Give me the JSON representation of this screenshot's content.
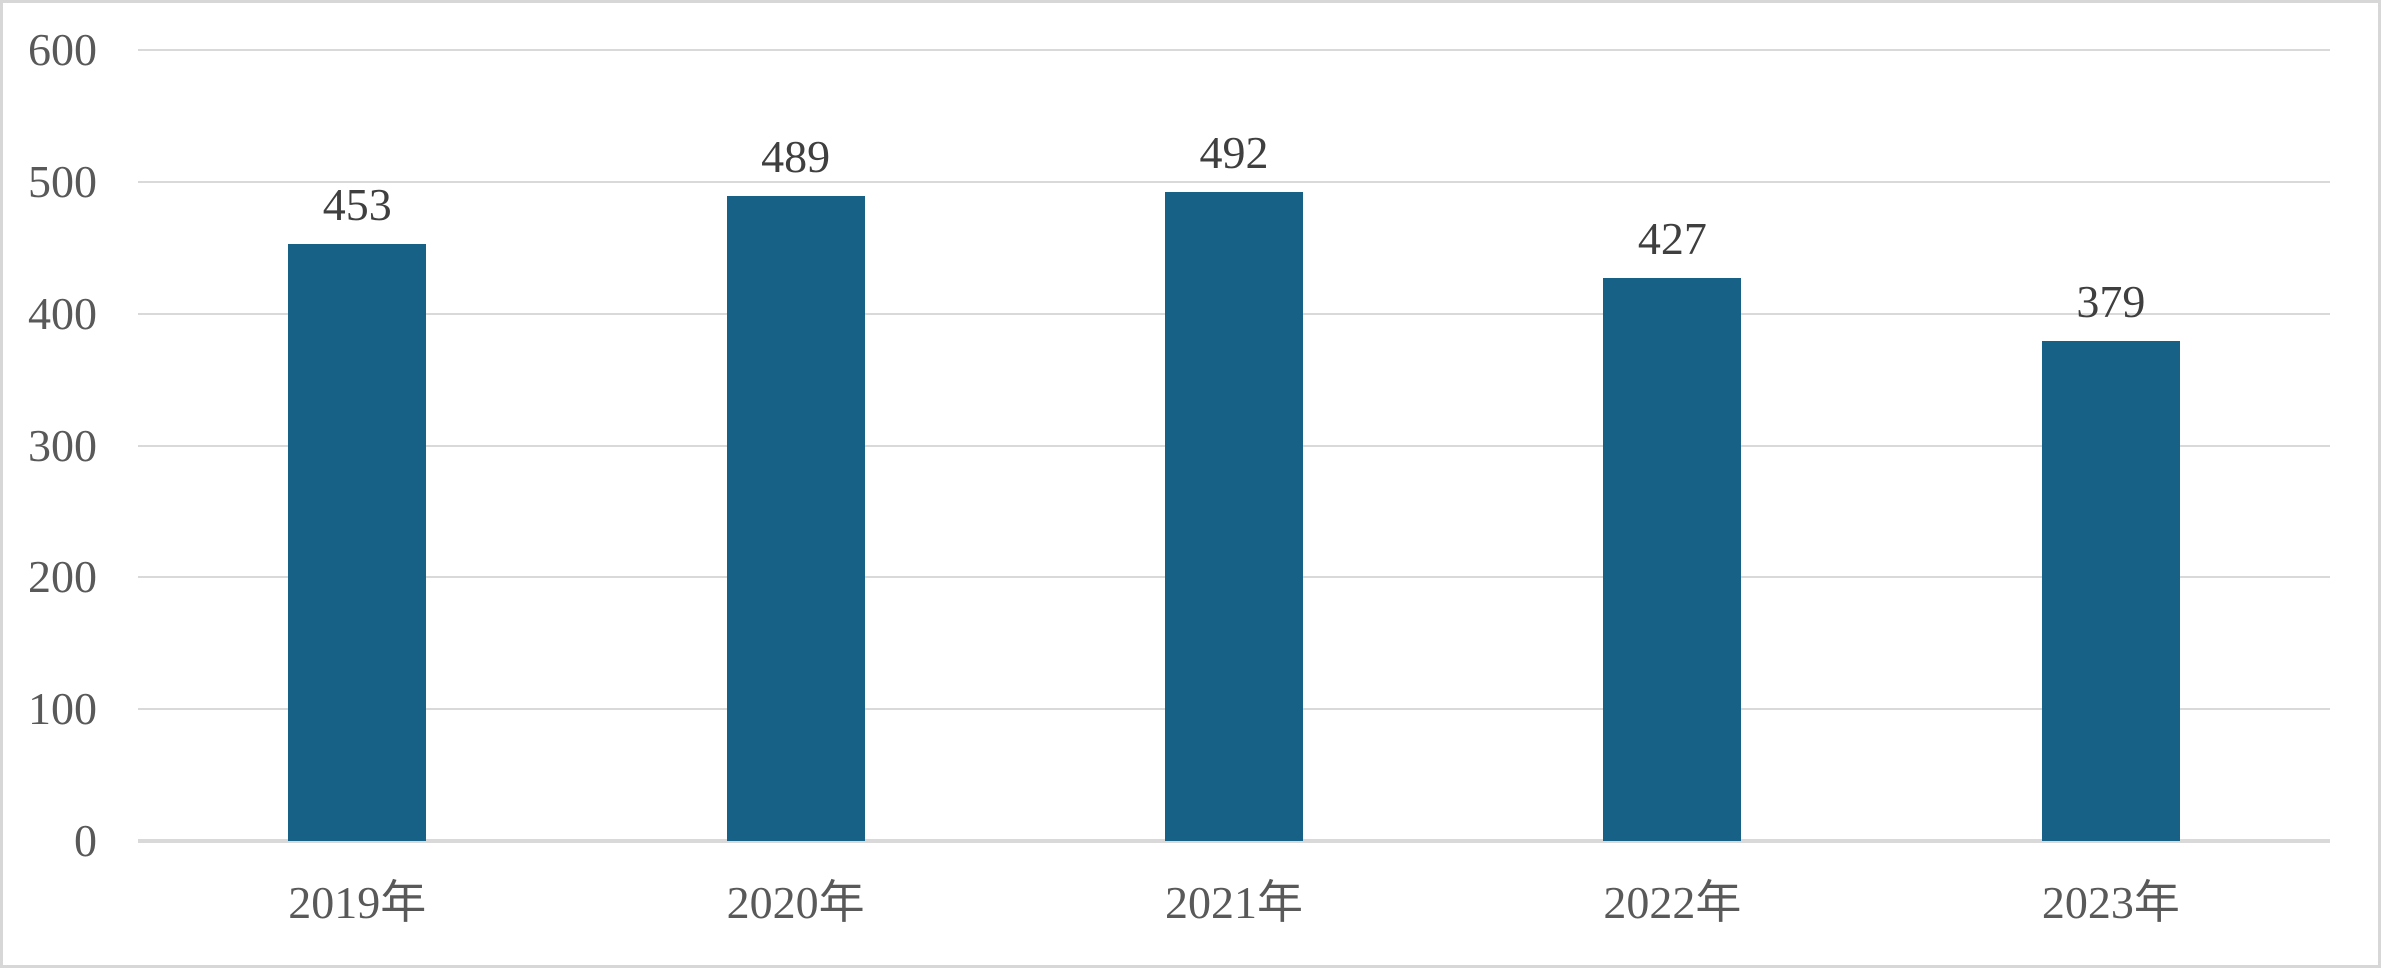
{
  "chart_data": {
    "type": "bar",
    "title": "",
    "xlabel": "",
    "ylabel": "",
    "categories": [
      "2019年",
      "2020年",
      "2021年",
      "2022年",
      "2023年"
    ],
    "values": [
      453,
      489,
      492,
      427,
      379
    ],
    "data_labels": [
      "453",
      "489",
      "492",
      "427",
      "379"
    ],
    "ylim": [
      0,
      600
    ],
    "yticks": [
      0,
      100,
      200,
      300,
      400,
      500,
      600
    ],
    "grid": true,
    "legend": false,
    "colors": {
      "bar": "#166185",
      "gridline": "#d9d9d9",
      "axis_line": "#d9d9d9",
      "tick_label": "#595959",
      "value_label": "#3f3f3f",
      "canvas_border": "#d7d7d7",
      "background": "#ffffff"
    }
  }
}
